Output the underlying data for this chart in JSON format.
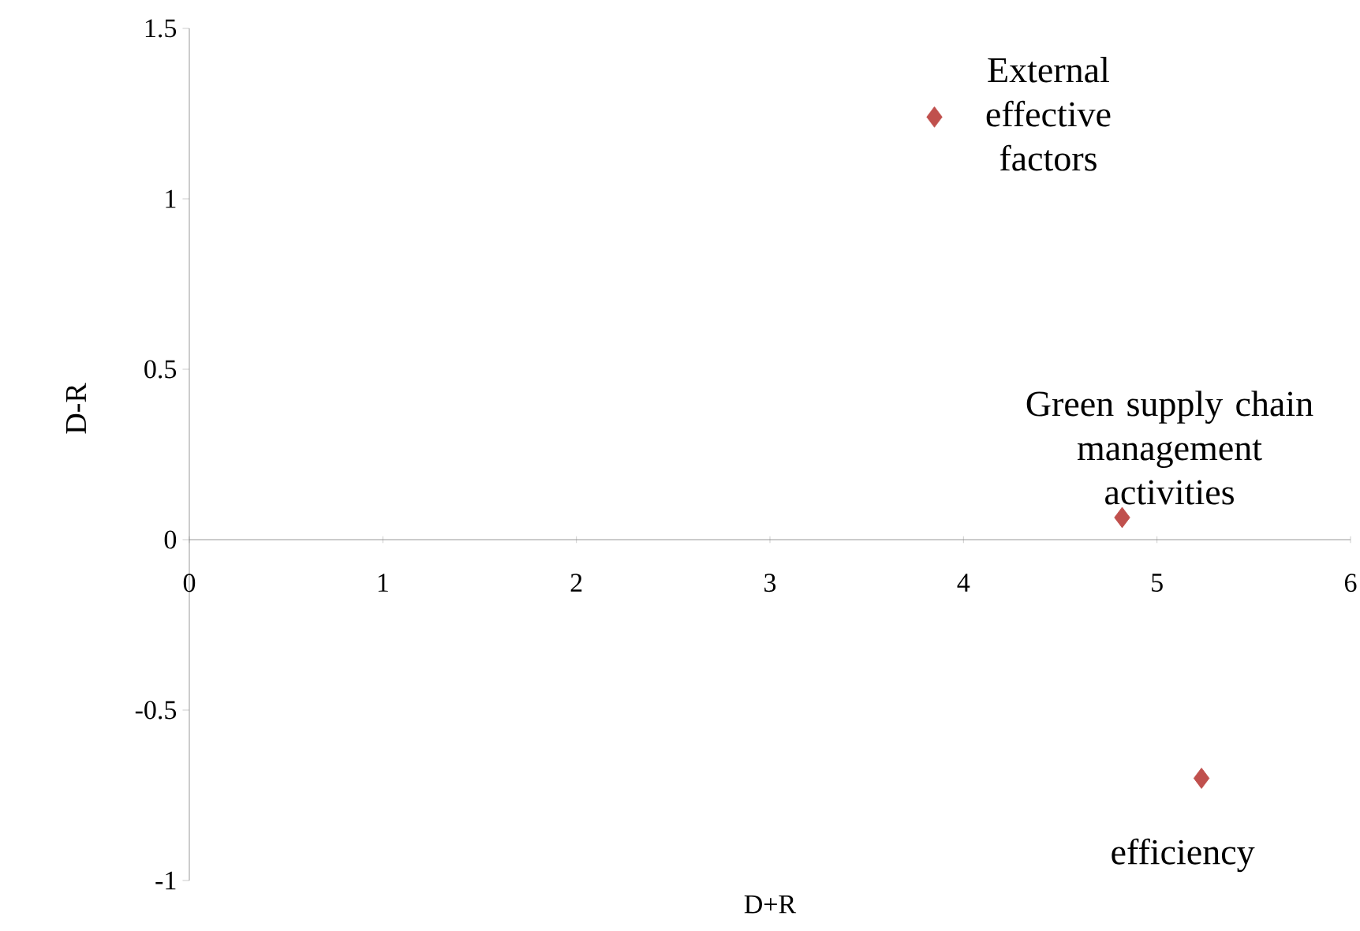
{
  "chart_data": {
    "type": "scatter",
    "xlabel": "D+R",
    "ylabel": "D-R",
    "x": [
      3.85,
      4.82,
      5.23
    ],
    "series": [
      {
        "color": "#c0504d",
        "values": [
          1.24,
          0.065,
          -0.7
        ]
      }
    ],
    "xlim": [
      0,
      6
    ],
    "xticks": [
      0,
      1,
      2,
      3,
      4,
      5,
      6
    ],
    "ylim": [
      -1,
      1.5
    ],
    "yticks": [
      -1,
      -0.5,
      0,
      0.5,
      1,
      1.5
    ],
    "marker": "diamond",
    "grid": false,
    "annotations": [
      {
        "text": "External effective factors",
        "x": 3.85,
        "y": 1.24
      },
      {
        "text": "Green supply chain management activities",
        "x": 4.82,
        "y": 0.065
      },
      {
        "text": "efficiency",
        "x": 5.23,
        "y": -0.7
      }
    ]
  }
}
